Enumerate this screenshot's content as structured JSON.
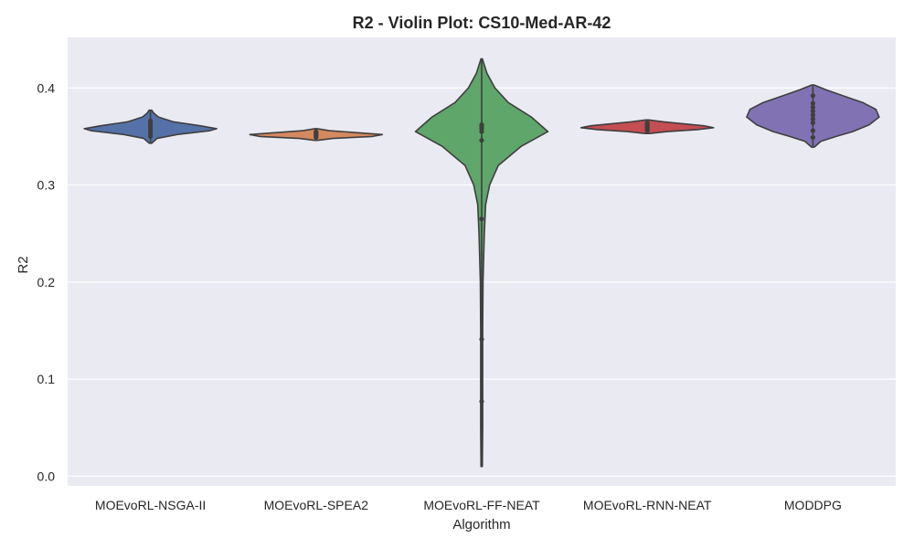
{
  "chart_data": {
    "type": "violin",
    "title": "R2 - Violin Plot: CS10-Med-AR-42",
    "xlabel": "Algorithm",
    "ylabel": "R2",
    "ylim": [
      -0.01,
      0.452
    ],
    "yticks": [
      "0.0",
      "0.1",
      "0.2",
      "0.3",
      "0.4"
    ],
    "ytick_values": [
      0.0,
      0.1,
      0.2,
      0.3,
      0.4
    ],
    "grid": true,
    "background": "#EAEAF2",
    "categories": [
      "MOEvoRL-NSGA-II",
      "MOEvoRL-SPEA2",
      "MOEvoRL-FF-NEAT",
      "MOEvoRL-RNN-NEAT",
      "MODDPG"
    ],
    "series": [
      {
        "color": "#5572A8",
        "min": 0.343,
        "max": 0.377,
        "profile": [
          [
            0.343,
            0.02
          ],
          [
            0.348,
            0.1
          ],
          [
            0.352,
            0.4
          ],
          [
            0.356,
            0.9
          ],
          [
            0.358,
            1.0
          ],
          [
            0.361,
            0.75
          ],
          [
            0.365,
            0.35
          ],
          [
            0.37,
            0.12
          ],
          [
            0.374,
            0.05
          ],
          [
            0.377,
            0.02
          ]
        ],
        "points": [
          0.35,
          0.352,
          0.354,
          0.356,
          0.358,
          0.36,
          0.362,
          0.364,
          0.366
        ]
      },
      {
        "color": "#D4895F",
        "min": 0.346,
        "max": 0.358,
        "profile": [
          [
            0.346,
            0.02
          ],
          [
            0.348,
            0.25
          ],
          [
            0.35,
            0.85
          ],
          [
            0.352,
            1.0
          ],
          [
            0.354,
            0.6
          ],
          [
            0.356,
            0.2
          ],
          [
            0.358,
            0.02
          ]
        ],
        "points": [
          0.349,
          0.35,
          0.351,
          0.352,
          0.353,
          0.354,
          0.355
        ]
      },
      {
        "color": "#5EA66A",
        "min": 0.01,
        "max": 0.43,
        "profile": [
          [
            0.01,
            0.01
          ],
          [
            0.05,
            0.015
          ],
          [
            0.1,
            0.015
          ],
          [
            0.15,
            0.015
          ],
          [
            0.2,
            0.02
          ],
          [
            0.25,
            0.04
          ],
          [
            0.28,
            0.06
          ],
          [
            0.3,
            0.12
          ],
          [
            0.32,
            0.25
          ],
          [
            0.34,
            0.6
          ],
          [
            0.355,
            1.0
          ],
          [
            0.37,
            0.75
          ],
          [
            0.385,
            0.4
          ],
          [
            0.4,
            0.2
          ],
          [
            0.415,
            0.08
          ],
          [
            0.43,
            0.01
          ]
        ],
        "points": [
          0.077,
          0.141,
          0.265,
          0.346,
          0.355,
          0.358,
          0.36,
          0.362
        ]
      },
      {
        "color": "#C44E52",
        "min": 0.353,
        "max": 0.367,
        "profile": [
          [
            0.353,
            0.03
          ],
          [
            0.355,
            0.3
          ],
          [
            0.357,
            0.75
          ],
          [
            0.359,
            1.0
          ],
          [
            0.361,
            0.85
          ],
          [
            0.363,
            0.55
          ],
          [
            0.365,
            0.25
          ],
          [
            0.367,
            0.02
          ]
        ],
        "points": [
          0.356,
          0.358,
          0.359,
          0.36,
          0.361,
          0.362,
          0.364
        ]
      },
      {
        "color": "#8172B3",
        "min": 0.339,
        "max": 0.403,
        "profile": [
          [
            0.339,
            0.02
          ],
          [
            0.345,
            0.12
          ],
          [
            0.35,
            0.35
          ],
          [
            0.355,
            0.6
          ],
          [
            0.362,
            0.85
          ],
          [
            0.37,
            1.0
          ],
          [
            0.378,
            0.95
          ],
          [
            0.385,
            0.75
          ],
          [
            0.392,
            0.45
          ],
          [
            0.398,
            0.2
          ],
          [
            0.403,
            0.02
          ]
        ],
        "points": [
          0.349,
          0.356,
          0.364,
          0.368,
          0.372,
          0.376,
          0.38,
          0.384,
          0.392
        ]
      }
    ]
  }
}
